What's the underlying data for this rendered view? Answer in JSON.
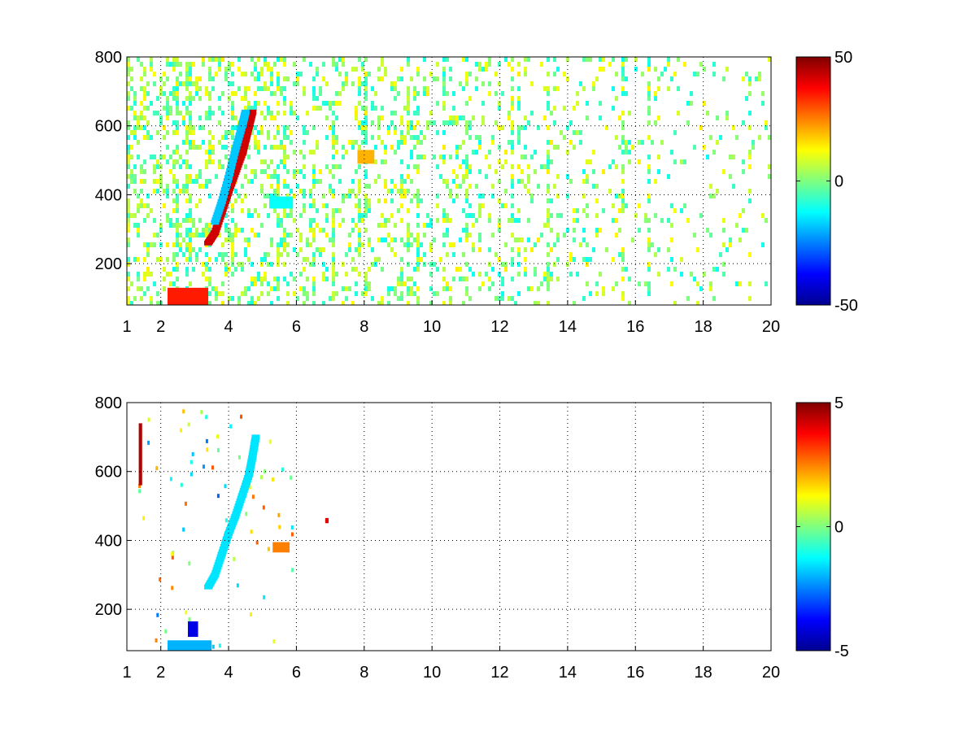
{
  "chart_data": [
    {
      "type": "heatmap",
      "title": "",
      "xlabel": "",
      "ylabel": "",
      "xlim": [
        1,
        20
      ],
      "ylim": [
        80,
        800
      ],
      "x_ticks": [
        1,
        2,
        4,
        6,
        8,
        10,
        12,
        14,
        16,
        18,
        20
      ],
      "x_tick_labels": [
        "1",
        "2",
        "4",
        "6",
        "8",
        "10",
        "12",
        "14",
        "16",
        "18",
        "20"
      ],
      "y_ticks": [
        200,
        400,
        600,
        800
      ],
      "y_tick_labels": [
        "200",
        "400",
        "600",
        "800"
      ],
      "grid": true,
      "colormap": "jet",
      "colorbar": {
        "min": -50,
        "max": 50,
        "ticks": [
          -50,
          0,
          50
        ],
        "tick_labels": [
          "-50",
          "0",
          "50"
        ]
      },
      "features": [
        {
          "desc": "strong positive ridge",
          "points": [
            [
              3.4,
              260
            ],
            [
              3.6,
              290
            ],
            [
              3.8,
              350
            ],
            [
              4.0,
              410
            ],
            [
              4.2,
              465
            ],
            [
              4.4,
              520
            ],
            [
              4.5,
              560
            ],
            [
              4.6,
              600
            ],
            [
              4.7,
              640
            ]
          ],
          "value": 42
        },
        {
          "desc": "positive band near bottom",
          "x_range": [
            2.2,
            3.4
          ],
          "y_range": [
            80,
            130
          ],
          "value": 35
        },
        {
          "desc": "negative streak",
          "points": [
            [
              3.6,
              320
            ],
            [
              3.8,
              380
            ],
            [
              4.0,
              450
            ],
            [
              4.2,
              530
            ],
            [
              4.4,
              600
            ],
            [
              4.5,
              640
            ]
          ],
          "value": -18
        },
        {
          "desc": "negative blob",
          "x_range": [
            5.2,
            5.9
          ],
          "y_range": [
            360,
            395
          ],
          "value": -12
        },
        {
          "desc": "positive blob",
          "x_range": [
            7.8,
            8.3
          ],
          "y_range": [
            490,
            530
          ],
          "value": 20
        }
      ]
    },
    {
      "type": "heatmap",
      "title": "",
      "xlabel": "",
      "ylabel": "",
      "xlim": [
        1,
        20
      ],
      "ylim": [
        80,
        800
      ],
      "x_ticks": [
        1,
        2,
        4,
        6,
        8,
        10,
        12,
        14,
        16,
        18,
        20
      ],
      "x_tick_labels": [
        "1",
        "2",
        "4",
        "6",
        "8",
        "10",
        "12",
        "14",
        "16",
        "18",
        "20"
      ],
      "y_ticks": [
        200,
        400,
        600,
        800
      ],
      "y_tick_labels": [
        "200",
        "400",
        "600",
        "800"
      ],
      "grid": true,
      "colormap": "jet",
      "colorbar": {
        "min": -5,
        "max": 5,
        "ticks": [
          -5,
          0,
          5
        ],
        "tick_labels": [
          "-5",
          "0",
          "5"
        ]
      },
      "features": [
        {
          "desc": "negative ridge",
          "points": [
            [
              3.4,
              265
            ],
            [
              3.6,
              300
            ],
            [
              3.8,
              360
            ],
            [
              4.0,
              420
            ],
            [
              4.2,
              470
            ],
            [
              4.4,
              530
            ],
            [
              4.6,
              590
            ],
            [
              4.7,
              640
            ],
            [
              4.8,
              700
            ]
          ],
          "value": -1.5
        },
        {
          "desc": "negative band near bottom",
          "x_range": [
            2.2,
            3.5
          ],
          "y_range": [
            80,
            110
          ],
          "value": -2
        },
        {
          "desc": "dark blue spot",
          "x_range": [
            2.8,
            3.1
          ],
          "y_range": [
            120,
            165
          ],
          "value": -4
        },
        {
          "desc": "positive blob",
          "x_range": [
            5.3,
            5.8
          ],
          "y_range": [
            365,
            395
          ],
          "value": 2.5
        },
        {
          "desc": "red streak",
          "x_range": [
            1.35,
            1.45
          ],
          "y_range": [
            560,
            740
          ],
          "value": 4.5
        },
        {
          "desc": "isolated red spot",
          "x_range": [
            6.85,
            6.95
          ],
          "y_range": [
            450,
            465
          ],
          "value": 4
        }
      ]
    }
  ]
}
